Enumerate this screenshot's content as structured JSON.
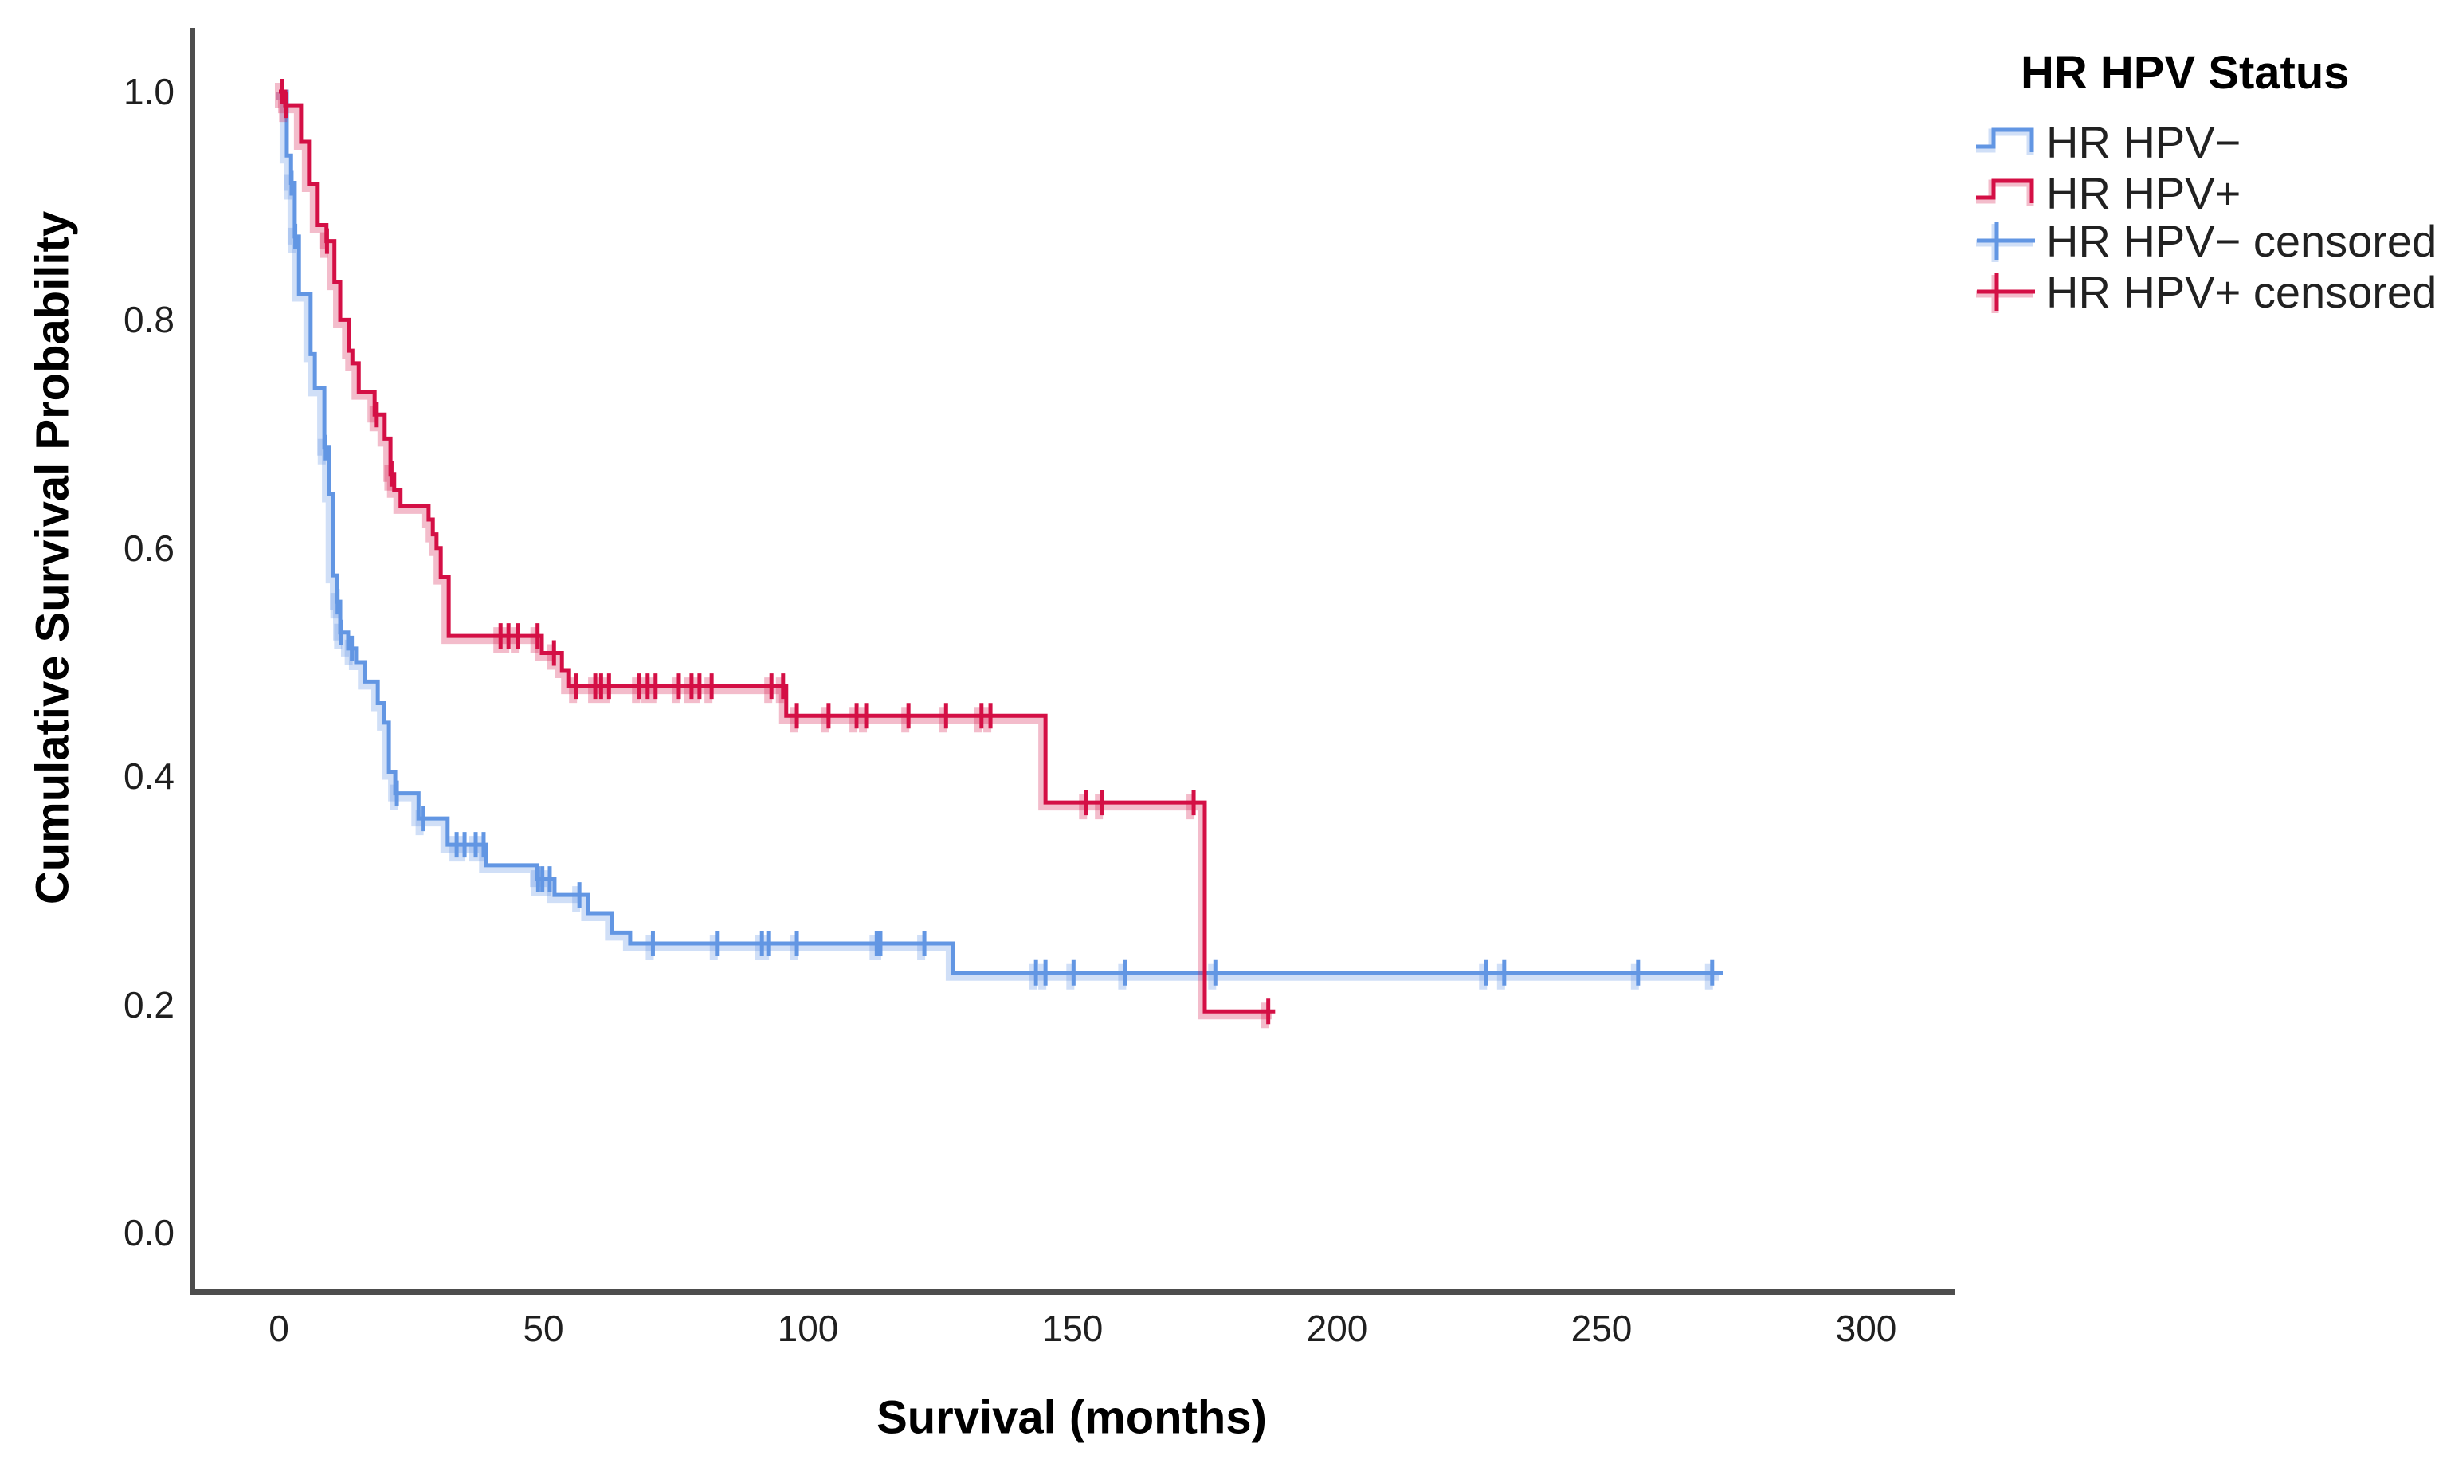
{
  "chart_data": {
    "type": "line",
    "variant": "kaplan_meier_step_survival",
    "title": "",
    "xlabel": "Survival (months)",
    "ylabel": "Cumulative Survival Probability",
    "grid": false,
    "axis_color": "#4d4d4d",
    "x_ticks": [
      {
        "value": 0,
        "label": "0"
      },
      {
        "value": 50,
        "label": "50"
      },
      {
        "value": 100,
        "label": "100"
      },
      {
        "value": 150,
        "label": "150"
      },
      {
        "value": 200,
        "label": "200"
      },
      {
        "value": 250,
        "label": "250"
      },
      {
        "value": 300,
        "label": "300"
      }
    ],
    "y_ticks": [
      {
        "value": 1.0,
        "label": "1.0"
      },
      {
        "value": 0.8,
        "label": "0.8"
      },
      {
        "value": 0.6,
        "label": "0.6"
      },
      {
        "value": 0.4,
        "label": "0.4"
      },
      {
        "value": 0.2,
        "label": "0.2"
      },
      {
        "value": 0.0,
        "label": "0.0"
      }
    ],
    "xlim": [
      -17,
      317
    ],
    "ylim": [
      0,
      1.06
    ],
    "legend": {
      "title": "HR HPV Status",
      "position": "top-right",
      "items": [
        {
          "label": "HR HPV−",
          "marker": "step-line",
          "color": "#6296E3"
        },
        {
          "label": "HR HPV+",
          "marker": "step-line",
          "color": "#D40F45"
        },
        {
          "label": "HR HPV− censored",
          "marker": "plus",
          "color": "#6296E3"
        },
        {
          "label": "HR HPV+ censored",
          "marker": "plus",
          "color": "#D40F45"
        }
      ]
    },
    "series": [
      {
        "name": "HR HPV−",
        "color": "#6296E3",
        "halo_color": "rgba(98,150,227,0.30)",
        "steps": [
          [
            0,
            1.0
          ],
          [
            1.5,
            0.944
          ],
          [
            2.3,
            0.92
          ],
          [
            3.0,
            0.873
          ],
          [
            3.8,
            0.823
          ],
          [
            6.0,
            0.77
          ],
          [
            6.8,
            0.74
          ],
          [
            8.6,
            0.688
          ],
          [
            9.5,
            0.647
          ],
          [
            10.2,
            0.576
          ],
          [
            11.0,
            0.553
          ],
          [
            11.6,
            0.526
          ],
          [
            13.1,
            0.512
          ],
          [
            14.6,
            0.5
          ],
          [
            16.3,
            0.483
          ],
          [
            18.7,
            0.464
          ],
          [
            19.9,
            0.447
          ],
          [
            20.8,
            0.404
          ],
          [
            22.0,
            0.385
          ],
          [
            26.4,
            0.363
          ],
          [
            31.9,
            0.34
          ],
          [
            39.2,
            0.322
          ],
          [
            48.8,
            0.31
          ],
          [
            52.1,
            0.296
          ],
          [
            58.5,
            0.28
          ],
          [
            63.0,
            0.263
          ],
          [
            66.4,
            0.2535
          ],
          [
            127.4,
            0.2278
          ]
        ],
        "end_time": 272.9,
        "censor_times": [
          2.4,
          3.1,
          8.7,
          11.1,
          11.8,
          13.8,
          22.3,
          27.2,
          33.6,
          35.1,
          37.2,
          38.7,
          49.0,
          49.8,
          51.2,
          56.8,
          70.7,
          82.8,
          91.3,
          92.5,
          97.9,
          113.0,
          113.7,
          122.0,
          143.1,
          144.9,
          150.2,
          160.0,
          177.0,
          228.2,
          231.6,
          256.9,
          270.9
        ]
      },
      {
        "name": "HR HPV+",
        "color": "#D40F45",
        "halo_color": "rgba(212,15,69,0.28)",
        "steps": [
          [
            0,
            1.0
          ],
          [
            1.2,
            0.988
          ],
          [
            4.2,
            0.956
          ],
          [
            5.7,
            0.919
          ],
          [
            7.2,
            0.883
          ],
          [
            9.0,
            0.869
          ],
          [
            10.5,
            0.833
          ],
          [
            11.6,
            0.8
          ],
          [
            13.3,
            0.773
          ],
          [
            13.9,
            0.762
          ],
          [
            15.1,
            0.737
          ],
          [
            18.1,
            0.717
          ],
          [
            20.0,
            0.696
          ],
          [
            21.1,
            0.665
          ],
          [
            21.8,
            0.651
          ],
          [
            23.0,
            0.637
          ],
          [
            28.3,
            0.625
          ],
          [
            29.1,
            0.612
          ],
          [
            29.8,
            0.6
          ],
          [
            30.6,
            0.575
          ],
          [
            32.1,
            0.523
          ],
          [
            49.7,
            0.508
          ],
          [
            53.5,
            0.493
          ],
          [
            54.7,
            0.479
          ],
          [
            95.9,
            0.453
          ],
          [
            144.9,
            0.377
          ],
          [
            175.0,
            0.194
          ]
        ],
        "end_time": 188.3,
        "censor_times": [
          0.6,
          1.4,
          9.1,
          18.5,
          21.3,
          41.9,
          43.4,
          45.2,
          48.9,
          52.0,
          56.2,
          59.8,
          60.9,
          62.4,
          68.1,
          69.7,
          71.2,
          75.6,
          78.0,
          79.5,
          81.8,
          93.1,
          95.3,
          97.9,
          103.9,
          109.2,
          111.0,
          119.0,
          126.1,
          132.8,
          134.5,
          152.6,
          155.6,
          172.9,
          187.0
        ]
      }
    ]
  }
}
